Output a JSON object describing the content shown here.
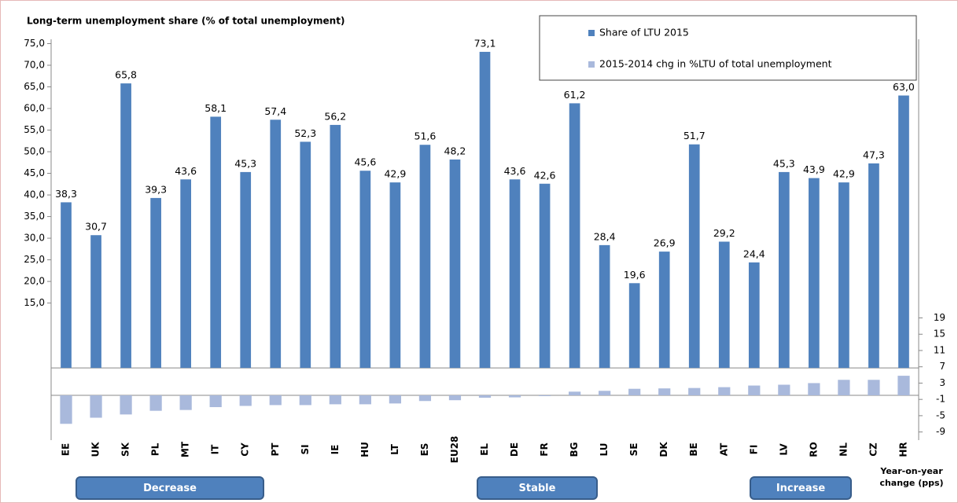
{
  "chart_data": {
    "type": "bar",
    "title": "Long-term unemployment share (% of total unemployment)",
    "categories": [
      "EE",
      "UK",
      "SK",
      "PL",
      "MT",
      "IT",
      "CY",
      "PT",
      "SI",
      "IE",
      "HU",
      "LT",
      "ES",
      "EU28",
      "EL",
      "DE",
      "FR",
      "BG",
      "LU",
      "SE",
      "DK",
      "BE",
      "AT",
      "FI",
      "LV",
      "RO",
      "NL",
      "CZ",
      "HR"
    ],
    "series": [
      {
        "name": "Share of LTU 2015",
        "color": "#4f81bd",
        "values": [
          38.3,
          30.7,
          65.8,
          39.3,
          43.6,
          58.1,
          45.3,
          57.4,
          52.3,
          56.2,
          45.6,
          42.9,
          51.6,
          48.2,
          73.1,
          43.6,
          42.6,
          61.2,
          28.4,
          19.6,
          26.9,
          51.7,
          29.2,
          24.4,
          45.3,
          43.9,
          42.9,
          47.3,
          63.0
        ],
        "value_labels": [
          "38,3",
          "30,7",
          "65,8",
          "39,3",
          "43,6",
          "58,1",
          "45,3",
          "57,4",
          "52,3",
          "56,2",
          "45,6",
          "42,9",
          "51,6",
          "48,2",
          "73,1",
          "43,6",
          "42,6",
          "61,2",
          "28,4",
          "19,6",
          "26,9",
          "51,7",
          "29,2",
          "24,4",
          "45,3",
          "43,9",
          "42,9",
          "47,3",
          "63,0"
        ]
      },
      {
        "name": "2015-2014 chg in %LTU of total unemployment",
        "color": "#a9b9dc",
        "axis": "y2",
        "values": [
          -7.0,
          -5.5,
          -4.7,
          -3.8,
          -3.6,
          -2.9,
          -2.6,
          -2.4,
          -2.4,
          -2.2,
          -2.2,
          -2.0,
          -1.4,
          -1.2,
          -0.6,
          -0.5,
          -0.2,
          0.9,
          1.1,
          1.6,
          1.7,
          1.8,
          2.0,
          2.4,
          2.6,
          3.0,
          3.8,
          3.8,
          4.8
        ]
      }
    ],
    "ylim": [
      -16.7,
      76
    ],
    "yticks": [
      {
        "value": 15,
        "label": "15,0"
      },
      {
        "value": 20,
        "label": "20,0"
      },
      {
        "value": 25,
        "label": "25,0"
      },
      {
        "value": 30,
        "label": "30,0"
      },
      {
        "value": 35,
        "label": "35,0"
      },
      {
        "value": 40,
        "label": "40,0"
      },
      {
        "value": 45,
        "label": "45,0"
      },
      {
        "value": 50,
        "label": "50,0"
      },
      {
        "value": 55,
        "label": "55,0"
      },
      {
        "value": 60,
        "label": "60,0"
      },
      {
        "value": 65,
        "label": "65,0"
      },
      {
        "value": 70,
        "label": "70,0"
      },
      {
        "value": 75,
        "label": "75,0"
      }
    ],
    "y2lim": [
      -11,
      87.4
    ],
    "y2ticks": [
      -9,
      -5,
      -1,
      3,
      7,
      11,
      15,
      19
    ],
    "y2_label": "Year-on-year change (pps)",
    "annotations": [
      "Decrease",
      "Stable",
      "Increase"
    ],
    "legend": "top-right"
  }
}
